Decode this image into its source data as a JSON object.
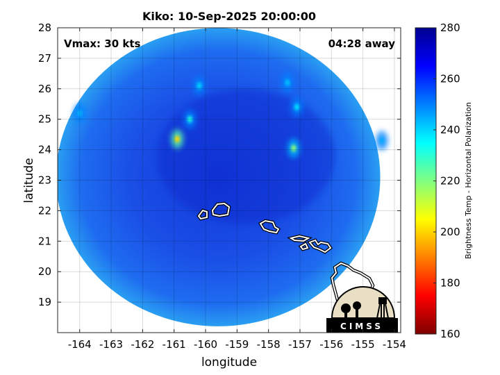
{
  "chart_data": {
    "type": "heatmap",
    "title": "Kiko: 10-Sep-2025 20:00:00",
    "xlabel": "longitude",
    "ylabel": "latitude",
    "xlim": [
      -164.7,
      -153.8
    ],
    "ylim": [
      18.0,
      28.0
    ],
    "xticks": [
      -164,
      -163,
      -162,
      -161,
      -160,
      -159,
      -158,
      -157,
      -156,
      -155,
      -154
    ],
    "yticks": [
      19,
      20,
      21,
      22,
      23,
      24,
      25,
      26,
      27,
      28
    ],
    "grid": true,
    "annotations": {
      "vmax": "Vmax: 30 kts",
      "away": "04:28 away"
    },
    "colorbar": {
      "label": "Brightness Temp - Horizontal Polarization",
      "range": [
        160,
        280
      ],
      "ticks": [
        160,
        180,
        200,
        220,
        240,
        260,
        280
      ],
      "colors": [
        "#7f0000",
        "#ff0000",
        "#ff8000",
        "#ffff00",
        "#80ff80",
        "#00ffff",
        "#0080ff",
        "#0000ff",
        "#00008f"
      ]
    },
    "swath": {
      "center": [
        -159.6,
        23.1
      ],
      "radius_deg": 5.15
    },
    "warm_spots": [
      {
        "lon": -160.9,
        "lat": 24.35,
        "value": 200
      },
      {
        "lon": -157.2,
        "lat": 24.05,
        "value": 218
      },
      {
        "lon": -157.1,
        "lat": 25.4,
        "value": 238
      },
      {
        "lon": -160.5,
        "lat": 25.0,
        "value": 232
      },
      {
        "lon": -160.2,
        "lat": 26.1,
        "value": 240
      },
      {
        "lon": -157.4,
        "lat": 26.2,
        "value": 242
      },
      {
        "lon": -164.0,
        "lat": 25.2,
        "value": 244
      },
      {
        "lon": -154.4,
        "lat": 24.3,
        "value": 245
      }
    ],
    "logo_text": "CIMSS"
  }
}
